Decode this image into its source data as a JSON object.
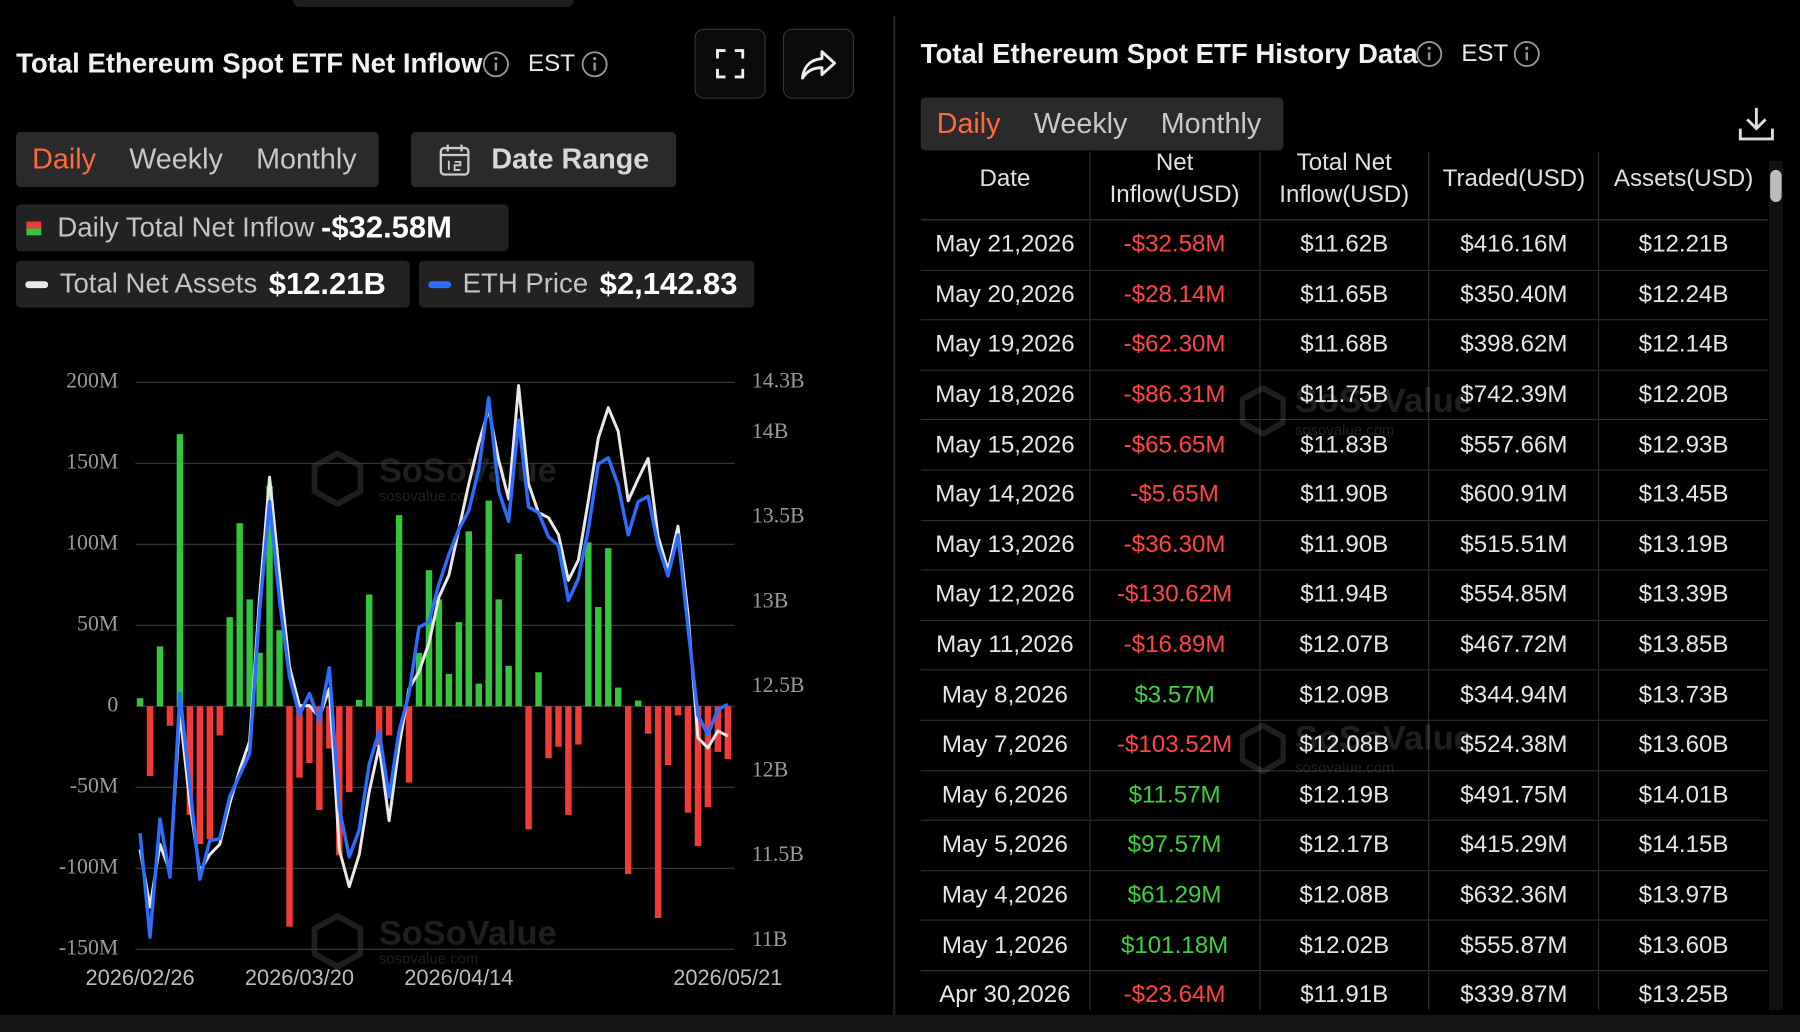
{
  "left_panel": {
    "title": "Total Ethereum Spot ETF Net Inflow",
    "timezone": "EST",
    "tabs": [
      "Daily",
      "Weekly",
      "Monthly"
    ],
    "date_range": "Date Range"
  },
  "chart_data": {
    "type": "combo",
    "categories": [
      "2026/02/26",
      null,
      null,
      null,
      null,
      null,
      null,
      null,
      null,
      null,
      null,
      null,
      null,
      null,
      null,
      null,
      "2026/03/20",
      null,
      null,
      null,
      null,
      null,
      null,
      null,
      null,
      null,
      null,
      null,
      null,
      null,
      null,
      null,
      "2026/04/14",
      null,
      null,
      null,
      null,
      null,
      null,
      null,
      null,
      null,
      null,
      null,
      null,
      null,
      null,
      null,
      null,
      null,
      null,
      null,
      null,
      null,
      null,
      null,
      null,
      null,
      null,
      "2026/05/21"
    ],
    "ylim": [
      -150,
      200
    ],
    "yticks": [
      {
        "value": 200,
        "label": "200M"
      },
      {
        "value": 150,
        "label": "150M"
      },
      {
        "value": 100,
        "label": "100M"
      },
      {
        "value": 50,
        "label": "50M"
      },
      0,
      {
        "value": -50,
        "label": "-50M"
      },
      {
        "value": -100,
        "label": "-100M"
      },
      {
        "value": -150,
        "label": "-150M"
      }
    ],
    "y2lim": [
      10.95,
      14.3
    ],
    "y2ticks": [
      {
        "value": 14.3,
        "label": "14.3B"
      },
      {
        "value": 14,
        "label": "14B"
      },
      {
        "value": 13.5,
        "label": "13.5B"
      },
      {
        "value": 13,
        "label": "13B"
      },
      {
        "value": 12.5,
        "label": "12.5B"
      },
      {
        "value": 12,
        "label": "12B"
      },
      {
        "value": 11.5,
        "label": "11.5B"
      },
      {
        "value": 11,
        "label": "11B"
      }
    ],
    "y3lim": [
      1780,
      2620
    ],
    "grid": true,
    "series": [
      {
        "name": "Daily Total Net Inflow",
        "type": "bar",
        "color": "#34c43e",
        "negative_color": "#f23b37",
        "latest_label": "-$32.58M",
        "values": [
          5,
          -43,
          37,
          -12,
          168,
          -67,
          -85,
          -82,
          -18,
          55,
          113,
          66,
          33,
          136,
          47,
          -136,
          -44,
          -35,
          -64,
          -26,
          -92,
          -53,
          4,
          69,
          -25,
          -18,
          118,
          -47,
          33,
          84,
          66,
          20,
          52,
          108,
          14,
          127,
          66,
          25,
          94,
          -76,
          21,
          -32,
          -25,
          -67,
          -23.64,
          101.18,
          61.29,
          97.57,
          11.57,
          -103.52,
          3.57,
          -16.89,
          -130.62,
          -36.3,
          -5.65,
          -65.65,
          -86.31,
          -62.3,
          -28.14,
          -32.58
        ]
      },
      {
        "name": "Total Net Assets",
        "type": "line",
        "axis": "y2",
        "color": "#e9e9e9",
        "latest_label": "$12.21B",
        "values": [
          11.54,
          11.2,
          11.57,
          11.41,
          12.35,
          11.81,
          11.41,
          11.51,
          11.57,
          11.81,
          12.01,
          12.18,
          13.03,
          13.74,
          13.16,
          12.62,
          12.39,
          12.39,
          12.32,
          12.49,
          11.54,
          11.32,
          11.51,
          11.88,
          12.15,
          11.71,
          12.15,
          12.49,
          12.59,
          12.76,
          13.03,
          13.16,
          13.43,
          13.7,
          13.94,
          14.14,
          13.84,
          13.61,
          14.28,
          13.7,
          13.53,
          13.5,
          13.4,
          13.13,
          13.25,
          13.6,
          13.97,
          14.15,
          14.01,
          13.6,
          13.73,
          13.85,
          13.39,
          13.19,
          13.45,
          12.93,
          12.2,
          12.14,
          12.24,
          12.21
        ]
      },
      {
        "name": "ETH Price",
        "type": "line",
        "axis": "y3",
        "color": "#2e6bff",
        "latest_label": "$2,142.83",
        "values": [
          1952,
          1798,
          1973,
          1887,
          2159,
          2022,
          1884,
          1941,
          1944,
          2006,
          2038,
          2070,
          2281,
          2443,
          2297,
          2184,
          2127,
          2159,
          2119,
          2197,
          1989,
          1917,
          1957,
          2054,
          2103,
          2006,
          2103,
          2159,
          2257,
          2265,
          2321,
          2365,
          2402,
          2430,
          2491,
          2597,
          2459,
          2414,
          2564,
          2435,
          2427,
          2391,
          2378,
          2297,
          2329,
          2402,
          2499,
          2508,
          2467,
          2394,
          2443,
          2451,
          2378,
          2333,
          2394,
          2257,
          2127,
          2098,
          2135,
          2142.83
        ]
      }
    ]
  },
  "right_panel": {
    "title": "Total Ethereum Spot ETF History Data",
    "timezone": "EST",
    "tabs": [
      "Daily",
      "Weekly",
      "Monthly"
    ],
    "table": {
      "columns": [
        [
          "Date"
        ],
        [
          "Net",
          "Inflow(USD)"
        ],
        [
          "Total Net",
          "Inflow(USD)"
        ],
        [
          "Traded(USD)"
        ],
        [
          "Assets(USD)"
        ]
      ],
      "rows": [
        [
          "May 21,2026",
          "-$32.58M",
          "$11.62B",
          "$416.16M",
          "$12.21B"
        ],
        [
          "May 20,2026",
          "-$28.14M",
          "$11.65B",
          "$350.40M",
          "$12.24B"
        ],
        [
          "May 19,2026",
          "-$62.30M",
          "$11.68B",
          "$398.62M",
          "$12.14B"
        ],
        [
          "May 18,2026",
          "-$86.31M",
          "$11.75B",
          "$742.39M",
          "$12.20B"
        ],
        [
          "May 15,2026",
          "-$65.65M",
          "$11.83B",
          "$557.66M",
          "$12.93B"
        ],
        [
          "May 14,2026",
          "-$5.65M",
          "$11.90B",
          "$600.91M",
          "$13.45B"
        ],
        [
          "May 13,2026",
          "-$36.30M",
          "$11.90B",
          "$515.51M",
          "$13.19B"
        ],
        [
          "May 12,2026",
          "-$130.62M",
          "$11.94B",
          "$554.85M",
          "$13.39B"
        ],
        [
          "May 11,2026",
          "-$16.89M",
          "$12.07B",
          "$467.72M",
          "$13.85B"
        ],
        [
          "May 8,2026",
          "$3.57M",
          "$12.09B",
          "$344.94M",
          "$13.73B"
        ],
        [
          "May 7,2026",
          "-$103.52M",
          "$12.08B",
          "$524.38M",
          "$13.60B"
        ],
        [
          "May 6,2026",
          "$11.57M",
          "$12.19B",
          "$491.75M",
          "$14.01B"
        ],
        [
          "May 5,2026",
          "$97.57M",
          "$12.17B",
          "$415.29M",
          "$14.15B"
        ],
        [
          "May 4,2026",
          "$61.29M",
          "$12.08B",
          "$632.36M",
          "$13.97B"
        ],
        [
          "May 1,2026",
          "$101.18M",
          "$12.02B",
          "$555.87M",
          "$13.60B"
        ],
        [
          "Apr 30,2026",
          "-$23.64M",
          "$11.91B",
          "$339.87M",
          "$13.25B"
        ]
      ]
    }
  },
  "watermark": {
    "brand": "SoSoValue",
    "url": "sosovalue.com"
  }
}
